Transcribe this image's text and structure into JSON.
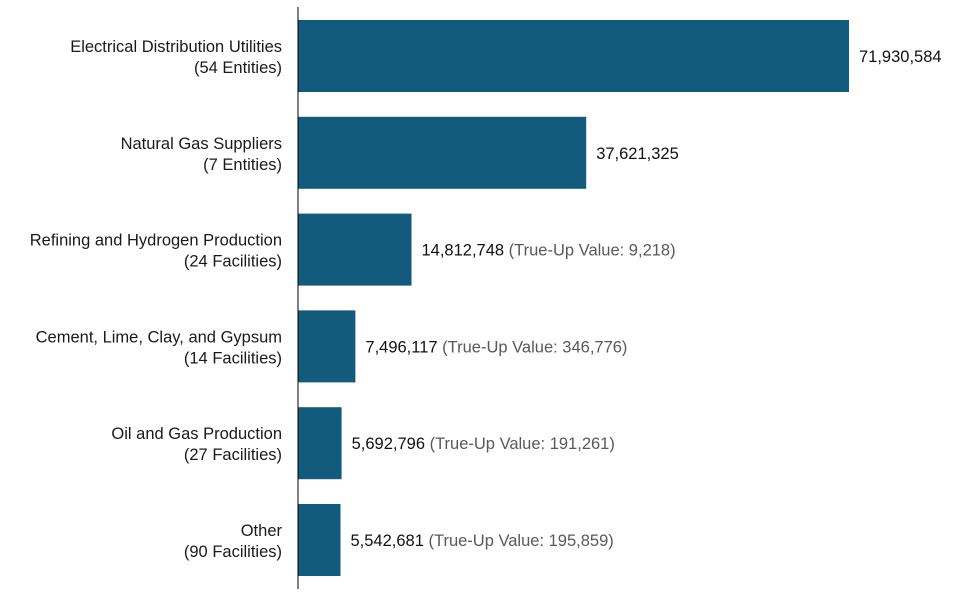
{
  "chart_data": {
    "type": "bar",
    "orientation": "horizontal",
    "title": "",
    "xlabel": "",
    "ylabel": "",
    "grid": false,
    "legend": "none",
    "xlim": [
      0,
      71930584
    ],
    "bar_color": "#135b7c",
    "categories": [
      {
        "name": "Electrical Distribution Utilities",
        "count": "(54 Entities)"
      },
      {
        "name": "Natural Gas Suppliers",
        "count": "(7 Entities)"
      },
      {
        "name": "Refining and Hydrogen Production",
        "count": "(24 Facilities)"
      },
      {
        "name": "Cement, Lime, Clay, and Gypsum",
        "count": "(14 Facilities)"
      },
      {
        "name": "Oil and Gas Production",
        "count": "(27 Facilities)"
      },
      {
        "name": "Other",
        "count": "(90 Facilities)"
      }
    ],
    "values": [
      71930584,
      37621325,
      14812748,
      7496117,
      5692796,
      5542681
    ],
    "value_labels": [
      "71,930,584",
      "37,621,325",
      "14,812,748",
      "7,496,117",
      "5,692,796",
      "5,542,681"
    ],
    "true_up_labels": [
      "",
      "",
      "(True-Up Value: 9,218)",
      "(True-Up Value: 346,776)",
      "(True-Up Value: 191,261)",
      "(True-Up Value: 195,859)"
    ]
  }
}
